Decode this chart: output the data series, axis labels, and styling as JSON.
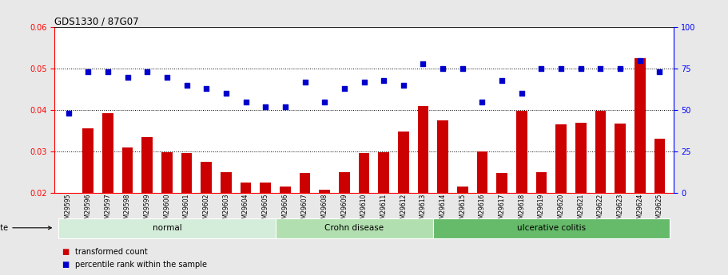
{
  "title": "GDS1330 / 87G07",
  "samples": [
    "GSM29595",
    "GSM29596",
    "GSM29597",
    "GSM29598",
    "GSM29599",
    "GSM29600",
    "GSM29601",
    "GSM29602",
    "GSM29603",
    "GSM29604",
    "GSM29605",
    "GSM29606",
    "GSM29607",
    "GSM29608",
    "GSM29609",
    "GSM29610",
    "GSM29611",
    "GSM29612",
    "GSM29613",
    "GSM29614",
    "GSM29615",
    "GSM29616",
    "GSM29617",
    "GSM29618",
    "GSM29619",
    "GSM29620",
    "GSM29621",
    "GSM29622",
    "GSM29623",
    "GSM29624",
    "GSM29625"
  ],
  "transformed_count": [
    0.02,
    0.0355,
    0.0393,
    0.031,
    0.0335,
    0.0298,
    0.0295,
    0.0275,
    0.025,
    0.0225,
    0.0225,
    0.0215,
    0.0248,
    0.0207,
    0.025,
    0.0295,
    0.0298,
    0.0348,
    0.041,
    0.0375,
    0.0215,
    0.03,
    0.0248,
    0.0398,
    0.025,
    0.0365,
    0.037,
    0.0398,
    0.0368,
    0.0525,
    0.033
  ],
  "percentile_rank": [
    48,
    73,
    73,
    70,
    73,
    70,
    65,
    63,
    60,
    55,
    52,
    52,
    67,
    55,
    63,
    67,
    68,
    65,
    78,
    75,
    75,
    55,
    68,
    60,
    75,
    75,
    75,
    75,
    75,
    80,
    73
  ],
  "groups": [
    {
      "label": "normal",
      "start": 0,
      "end": 11,
      "color": "#d4edda"
    },
    {
      "label": "Crohn disease",
      "start": 11,
      "end": 19,
      "color": "#b2dfb0"
    },
    {
      "label": "ulcerative colitis",
      "start": 19,
      "end": 31,
      "color": "#66bb6a"
    }
  ],
  "bar_color": "#cc0000",
  "dot_color": "#0000cc",
  "left_ylim": [
    0.02,
    0.06
  ],
  "right_ylim": [
    0,
    100
  ],
  "left_yticks": [
    0.02,
    0.03,
    0.04,
    0.05,
    0.06
  ],
  "right_yticks": [
    0,
    25,
    50,
    75,
    100
  ],
  "grid_values": [
    0.03,
    0.04,
    0.05
  ],
  "fig_bg": "#e8e8e8",
  "plot_bg": "#ffffff"
}
